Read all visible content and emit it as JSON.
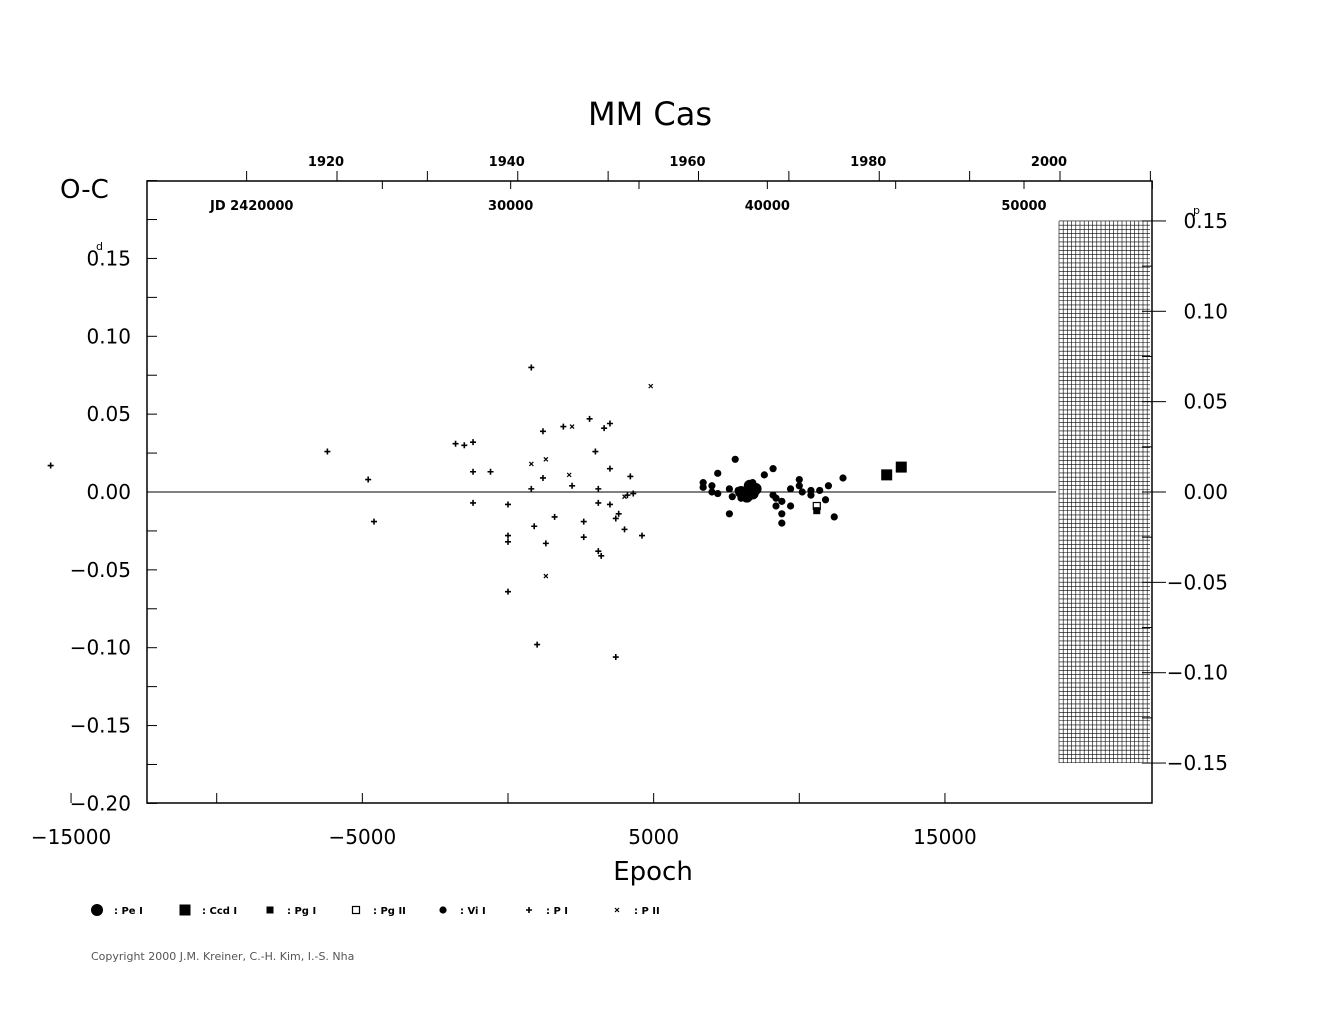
{
  "chart_data": {
    "type": "scatter",
    "title": "MM  Cas",
    "xlabel": "Epoch",
    "ylabel": "O-C",
    "y_unit_left": "d",
    "y_unit_right": "p",
    "xlim": [
      -17000,
      17500
    ],
    "ylim": [
      -0.2,
      0.2
    ],
    "x_ticks": [
      -15000,
      -5000,
      5000,
      15000
    ],
    "x_tick_labels": [
      "−15000",
      "−5000",
      "5000",
      "15000"
    ],
    "y_ticks": [
      0.15,
      0.1,
      0.05,
      0.0,
      -0.05,
      -0.1,
      -0.15,
      -0.2
    ],
    "y_tick_labels": [
      "0.15",
      "0.10",
      "0.05",
      "0.00",
      "−0.05",
      "−0.10",
      "−0.15",
      "−0.20"
    ],
    "right_ticks": [
      0.15,
      0.1,
      0.05,
      0.0,
      -0.05,
      -0.1,
      -0.15
    ],
    "right_tick_labels": [
      "0.15",
      "0.10",
      "0.05",
      "0.00",
      "−0.05",
      "−0.10",
      "−0.15"
    ],
    "year_ticks": [
      1920,
      1940,
      1960,
      1980,
      2000
    ],
    "year_labels": [
      "1920",
      "1940",
      "1960",
      "1980",
      "2000"
    ],
    "jd_ticks": [
      20000,
      30000,
      40000,
      50000
    ],
    "jd_labels": [
      "JD  2420000",
      "30000",
      "40000",
      "50000"
    ],
    "copyright": "Copyright 2000 J.M. Kreiner, C.-H. Kim, I.-S. Nha",
    "legend": [
      {
        "symbol": "pe-big-dot",
        "label": ": Pe  I"
      },
      {
        "symbol": "ccd-square",
        "label": ": Ccd  I"
      },
      {
        "symbol": "pg-square",
        "label": ": Pg  I"
      },
      {
        "symbol": "pg-open-square",
        "label": ": Pg  II"
      },
      {
        "symbol": "vis-dot",
        "label": ": Vi  I"
      },
      {
        "symbol": "plus",
        "label": ": P  I"
      },
      {
        "symbol": "cross",
        "label": ": P  II"
      }
    ],
    "series": [
      {
        "name": "P I",
        "symbol": "plus",
        "points": [
          [
            -15700,
            0.017
          ],
          [
            -6200,
            0.026
          ],
          [
            -4800,
            0.008
          ],
          [
            -4600,
            -0.019
          ],
          [
            -1800,
            0.031
          ],
          [
            -1500,
            0.03
          ],
          [
            -1200,
            0.032
          ],
          [
            -1200,
            0.013
          ],
          [
            -1200,
            -0.007
          ],
          [
            -600,
            0.013
          ],
          [
            0,
            -0.008
          ],
          [
            0,
            -0.028
          ],
          [
            0,
            -0.064
          ],
          [
            800,
            0.08
          ],
          [
            800,
            0.002
          ],
          [
            900,
            -0.022
          ],
          [
            1000,
            -0.098
          ],
          [
            1200,
            0.039
          ],
          [
            1200,
            0.009
          ],
          [
            1300,
            -0.033
          ],
          [
            1600,
            -0.016
          ],
          [
            1900,
            0.042
          ],
          [
            2200,
            0.004
          ],
          [
            2600,
            -0.019
          ],
          [
            2600,
            -0.029
          ],
          [
            3000,
            0.026
          ],
          [
            3100,
            0.002
          ],
          [
            3100,
            -0.007
          ],
          [
            3100,
            -0.038
          ],
          [
            3200,
            -0.041
          ],
          [
            3300,
            0.041
          ],
          [
            3500,
            0.044
          ],
          [
            3500,
            0.015
          ],
          [
            3500,
            -0.008
          ],
          [
            3700,
            -0.017
          ],
          [
            3800,
            -0.014
          ],
          [
            4000,
            -0.024
          ],
          [
            4100,
            -0.002
          ],
          [
            4200,
            0.01
          ],
          [
            4300,
            -0.001
          ],
          [
            4600,
            -0.028
          ],
          [
            3700,
            -0.106
          ],
          [
            0,
            -0.032
          ],
          [
            2800,
            0.047
          ]
        ]
      },
      {
        "name": "P II",
        "symbol": "cross",
        "points": [
          [
            800,
            0.018
          ],
          [
            1300,
            0.021
          ],
          [
            1300,
            -0.054
          ],
          [
            2100,
            0.011
          ],
          [
            2200,
            0.042
          ],
          [
            4900,
            0.068
          ],
          [
            4000,
            -0.003
          ]
        ]
      },
      {
        "name": "Vi I",
        "symbol": "vis-dot",
        "points": [
          [
            6700,
            0.006
          ],
          [
            6700,
            0.003
          ],
          [
            7000,
            0.004
          ],
          [
            7000,
            0.0
          ],
          [
            7200,
            -0.001
          ],
          [
            7200,
            0.012
          ],
          [
            7600,
            0.002
          ],
          [
            7600,
            -0.014
          ],
          [
            7700,
            -0.003
          ],
          [
            7800,
            0.021
          ],
          [
            7900,
            0.001
          ],
          [
            8000,
            -0.004
          ],
          [
            8200,
            0.002
          ],
          [
            8300,
            -0.002
          ],
          [
            8400,
            0.006
          ],
          [
            8800,
            0.011
          ],
          [
            9100,
            0.015
          ],
          [
            9100,
            -0.002
          ],
          [
            9200,
            -0.004
          ],
          [
            9200,
            -0.009
          ],
          [
            9400,
            -0.006
          ],
          [
            9400,
            -0.014
          ],
          [
            9400,
            -0.02
          ],
          [
            9700,
            0.002
          ],
          [
            9700,
            -0.009
          ],
          [
            10000,
            0.004
          ],
          [
            10000,
            0.008
          ],
          [
            10100,
            0.0
          ],
          [
            10400,
            -0.002
          ],
          [
            10400,
            0.001
          ],
          [
            10700,
            0.001
          ],
          [
            10900,
            -0.005
          ],
          [
            11000,
            0.004
          ],
          [
            11200,
            -0.016
          ],
          [
            11500,
            0.009
          ]
        ]
      },
      {
        "name": "Pe I",
        "symbol": "pe-big-dot",
        "points": [
          [
            8000,
            0.0
          ],
          [
            8200,
            -0.003
          ],
          [
            8300,
            0.004
          ],
          [
            8400,
            -0.001
          ],
          [
            8500,
            0.002
          ]
        ]
      },
      {
        "name": "Ccd I",
        "symbol": "ccd-square",
        "points": [
          [
            13000,
            0.011
          ],
          [
            13500,
            0.016
          ]
        ]
      },
      {
        "name": "Pg II",
        "symbol": "pg-open-square",
        "points": [
          [
            10600,
            -0.009
          ]
        ]
      },
      {
        "name": "Pg I",
        "symbol": "pg-square",
        "points": [
          [
            10600,
            -0.012
          ]
        ]
      }
    ]
  }
}
